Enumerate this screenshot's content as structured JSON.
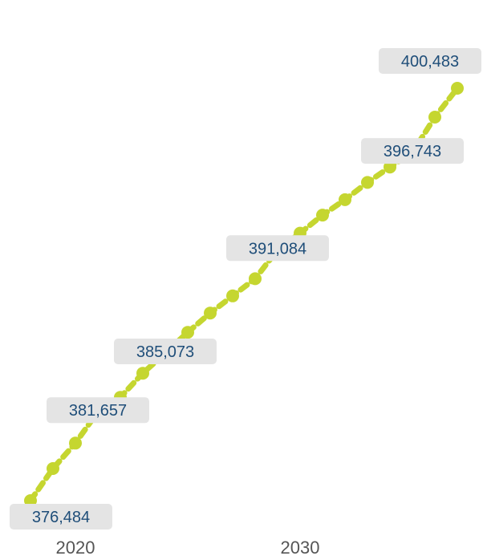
{
  "chart_data": {
    "type": "line",
    "title": "",
    "xlabel": "",
    "ylabel": "",
    "x": [
      2018,
      2019,
      2020,
      2021,
      2022,
      2023,
      2024,
      2025,
      2026,
      2027,
      2028,
      2029,
      2030,
      2031,
      2032,
      2033,
      2034,
      2035,
      2036,
      2037
    ],
    "series": [
      {
        "name": "",
        "values": [
          376484,
          378350,
          379830,
          381657,
          382500,
          383900,
          385073,
          386280,
          387400,
          388400,
          389400,
          391084,
          392050,
          393100,
          394000,
          395000,
          395900,
          396743,
          398800,
          400483
        ]
      }
    ],
    "x_ticks": [
      {
        "value": 2020,
        "label": "2020"
      },
      {
        "value": 2030,
        "label": "2030"
      }
    ],
    "data_labels": [
      {
        "index": 0,
        "text": "376,484"
      },
      {
        "index": 3,
        "text": "381,657"
      },
      {
        "index": 6,
        "text": "385,073"
      },
      {
        "index": 11,
        "text": "391,084"
      },
      {
        "index": 17,
        "text": "396,743"
      },
      {
        "index": 19,
        "text": "400,483"
      }
    ],
    "xlim": [
      2018,
      2037
    ],
    "ylim": [
      376484,
      400483
    ],
    "grid": false,
    "legend": "none",
    "colors": {
      "line": "#c5d630",
      "label_bg": "#e4e4e4",
      "label_text": "#1f4e79",
      "tick_text": "#555555"
    }
  }
}
